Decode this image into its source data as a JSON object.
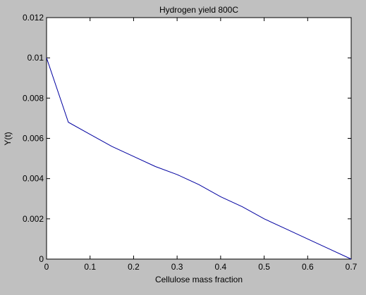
{
  "figure": {
    "background": "#c0c0c0",
    "axes_background": "#ffffff",
    "line_color": "#0000a0"
  },
  "chart_data": {
    "type": "line",
    "title": "Hydrogen yield 800C",
    "xlabel": "Cellulose mass fraction",
    "ylabel": "Y(t)",
    "xlim": [
      0,
      0.7
    ],
    "ylim": [
      0,
      0.012
    ],
    "xticks": [
      0,
      0.1,
      0.2,
      0.3,
      0.4,
      0.5,
      0.6,
      0.7
    ],
    "xtick_labels": [
      "0",
      "0.1",
      "0.2",
      "0.3",
      "0.4",
      "0.5",
      "0.6",
      "0.7"
    ],
    "yticks": [
      0,
      0.002,
      0.004,
      0.006,
      0.008,
      0.01,
      0.012
    ],
    "ytick_labels": [
      "0",
      "0.002",
      "0.004",
      "0.006",
      "0.008",
      "0.01",
      "0.012"
    ],
    "grid": false,
    "series": [
      {
        "color": "#0000a0",
        "x": [
          0,
          0.05,
          0.1,
          0.15,
          0.2,
          0.25,
          0.3,
          0.35,
          0.4,
          0.45,
          0.5,
          0.55,
          0.6,
          0.65,
          0.7
        ],
        "y": [
          0.01,
          0.0068,
          0.0062,
          0.0056,
          0.0051,
          0.0046,
          0.0042,
          0.0037,
          0.0031,
          0.0026,
          0.002,
          0.0015,
          0.001,
          0.0005,
          0.0
        ]
      }
    ]
  }
}
